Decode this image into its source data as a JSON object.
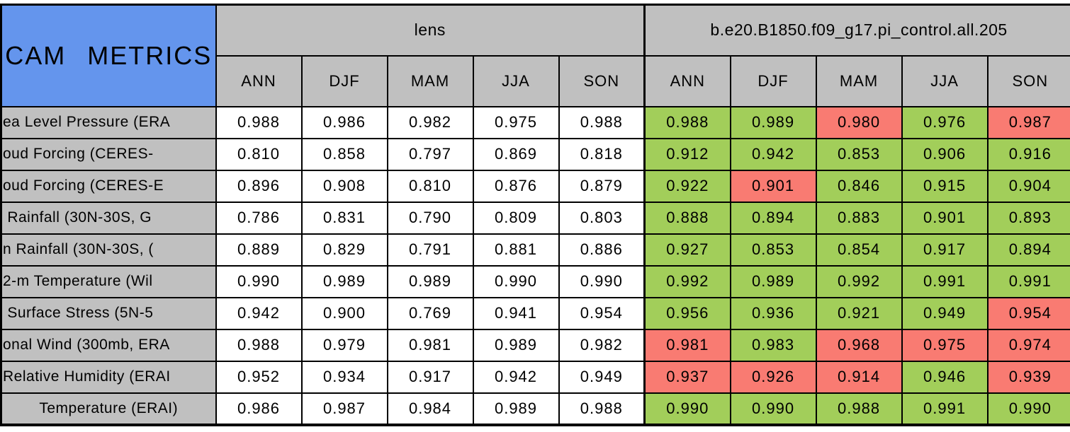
{
  "chart_data": {
    "type": "table",
    "title": "CAM METRICS",
    "column_groups": [
      {
        "label": "lens"
      },
      {
        "label": "b.e20.B1850.f09_g17.pi_control.all.205"
      }
    ],
    "season_columns": [
      "ANN",
      "DJF",
      "MAM",
      "JJA",
      "SON"
    ],
    "colors": {
      "title_bg": "#6495ed",
      "header_bg": "#c0c0c0",
      "good_cell": "#a2ce5a",
      "bad_cell": "#f97b72",
      "plain_cell": "#ffffff",
      "border": "#000000"
    },
    "rows": [
      {
        "label": "ea Level Pressure (ERA",
        "lens": [
          "0.988",
          "0.986",
          "0.982",
          "0.975",
          "0.988"
        ],
        "model": [
          {
            "value": "0.988",
            "status": "good"
          },
          {
            "value": "0.989",
            "status": "good"
          },
          {
            "value": "0.980",
            "status": "bad"
          },
          {
            "value": "0.976",
            "status": "good"
          },
          {
            "value": "0.987",
            "status": "bad"
          }
        ]
      },
      {
        "label": "oud Forcing (CERES-",
        "lens": [
          "0.810",
          "0.858",
          "0.797",
          "0.869",
          "0.818"
        ],
        "model": [
          {
            "value": "0.912",
            "status": "good"
          },
          {
            "value": "0.942",
            "status": "good"
          },
          {
            "value": "0.853",
            "status": "good"
          },
          {
            "value": "0.906",
            "status": "good"
          },
          {
            "value": "0.916",
            "status": "good"
          }
        ]
      },
      {
        "label": "oud Forcing (CERES-E",
        "lens": [
          "0.896",
          "0.908",
          "0.810",
          "0.876",
          "0.879"
        ],
        "model": [
          {
            "value": "0.922",
            "status": "good"
          },
          {
            "value": "0.901",
            "status": "bad"
          },
          {
            "value": "0.846",
            "status": "good"
          },
          {
            "value": "0.915",
            "status": "good"
          },
          {
            "value": "0.904",
            "status": "good"
          }
        ]
      },
      {
        "label": " Rainfall (30N-30S, G",
        "lens": [
          "0.786",
          "0.831",
          "0.790",
          "0.809",
          "0.803"
        ],
        "model": [
          {
            "value": "0.888",
            "status": "good"
          },
          {
            "value": "0.894",
            "status": "good"
          },
          {
            "value": "0.883",
            "status": "good"
          },
          {
            "value": "0.901",
            "status": "good"
          },
          {
            "value": "0.893",
            "status": "good"
          }
        ]
      },
      {
        "label": "n Rainfall (30N-30S, (",
        "lens": [
          "0.889",
          "0.829",
          "0.791",
          "0.881",
          "0.886"
        ],
        "model": [
          {
            "value": "0.927",
            "status": "good"
          },
          {
            "value": "0.853",
            "status": "good"
          },
          {
            "value": "0.854",
            "status": "good"
          },
          {
            "value": "0.917",
            "status": "good"
          },
          {
            "value": "0.894",
            "status": "good"
          }
        ]
      },
      {
        "label": "2-m Temperature (Wil",
        "lens": [
          "0.990",
          "0.989",
          "0.989",
          "0.990",
          "0.990"
        ],
        "model": [
          {
            "value": "0.992",
            "status": "good"
          },
          {
            "value": "0.989",
            "status": "good"
          },
          {
            "value": "0.992",
            "status": "good"
          },
          {
            "value": "0.991",
            "status": "good"
          },
          {
            "value": "0.991",
            "status": "good"
          }
        ]
      },
      {
        "label": " Surface Stress (5N-5",
        "lens": [
          "0.942",
          "0.900",
          "0.769",
          "0.941",
          "0.954"
        ],
        "model": [
          {
            "value": "0.956",
            "status": "good"
          },
          {
            "value": "0.936",
            "status": "good"
          },
          {
            "value": "0.921",
            "status": "good"
          },
          {
            "value": "0.949",
            "status": "good"
          },
          {
            "value": "0.954",
            "status": "bad"
          }
        ]
      },
      {
        "label": "onal Wind (300mb, ERA",
        "lens": [
          "0.988",
          "0.979",
          "0.981",
          "0.989",
          "0.982"
        ],
        "model": [
          {
            "value": "0.981",
            "status": "bad"
          },
          {
            "value": "0.983",
            "status": "good"
          },
          {
            "value": "0.968",
            "status": "bad"
          },
          {
            "value": "0.975",
            "status": "bad"
          },
          {
            "value": "0.974",
            "status": "bad"
          }
        ]
      },
      {
        "label": "Relative Humidity (ERAI",
        "lens": [
          "0.952",
          "0.934",
          "0.917",
          "0.942",
          "0.949"
        ],
        "model": [
          {
            "value": "0.937",
            "status": "bad"
          },
          {
            "value": "0.926",
            "status": "bad"
          },
          {
            "value": "0.914",
            "status": "bad"
          },
          {
            "value": "0.946",
            "status": "good"
          },
          {
            "value": "0.939",
            "status": "bad"
          }
        ]
      },
      {
        "label": "Temperature (ERAI)",
        "lens": [
          "0.986",
          "0.987",
          "0.984",
          "0.989",
          "0.988"
        ],
        "model": [
          {
            "value": "0.990",
            "status": "good"
          },
          {
            "value": "0.990",
            "status": "good"
          },
          {
            "value": "0.988",
            "status": "good"
          },
          {
            "value": "0.991",
            "status": "good"
          },
          {
            "value": "0.990",
            "status": "good"
          }
        ]
      }
    ]
  }
}
